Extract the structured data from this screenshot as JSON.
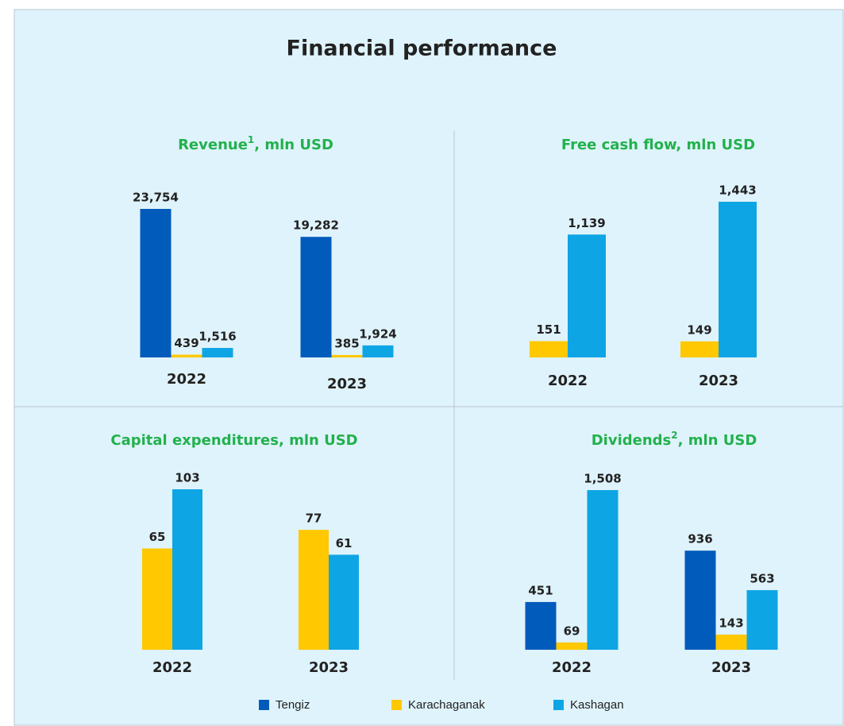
{
  "title": "Financial performance",
  "legend": [
    {
      "name": "Tengiz",
      "color": "#005bbb"
    },
    {
      "name": "Karachaganak",
      "color": "#ffc800"
    },
    {
      "name": "Kashagan",
      "color": "#0ea5e4"
    }
  ],
  "chart_data": [
    {
      "type": "bar",
      "title": "Revenue",
      "title_superscript": "1",
      "title_suffix": ", mln  USD",
      "categories": [
        "2022",
        "2023"
      ],
      "series": [
        {
          "values": [
            23754,
            19282
          ],
          "value_labels": [
            "23,754",
            "19,282"
          ]
        },
        {
          "values": [
            439,
            385
          ]
        },
        {
          "values": [
            1516,
            1924
          ],
          "value_labels": [
            "1,516",
            "1,924"
          ]
        }
      ]
    },
    {
      "type": "bar",
      "title": "Free cash flow, mln  USD",
      "categories": [
        "2022",
        "2023"
      ],
      "series": [
        {
          "values": [
            null,
            null
          ]
        },
        {
          "values": [
            151,
            149
          ]
        },
        {
          "values": [
            1139,
            1443
          ],
          "value_labels": [
            "1,139",
            "1,443"
          ]
        }
      ]
    },
    {
      "type": "bar",
      "title": "Capital expenditures, mln  USD",
      "categories": [
        "2022",
        "2023"
      ],
      "series": [
        {
          "values": [
            null,
            null
          ]
        },
        {
          "values": [
            65,
            77
          ]
        },
        {
          "values": [
            103,
            61
          ]
        }
      ]
    },
    {
      "type": "bar",
      "title": "Dividends",
      "title_superscript": "2",
      "title_suffix": ", mln  USD",
      "categories": [
        "2022",
        "2023"
      ],
      "series": [
        {
          "values": [
            451,
            936
          ]
        },
        {
          "values": [
            69,
            143
          ]
        },
        {
          "values": [
            1508,
            563
          ],
          "value_labels": [
            "1,508",
            "563"
          ]
        }
      ]
    }
  ]
}
